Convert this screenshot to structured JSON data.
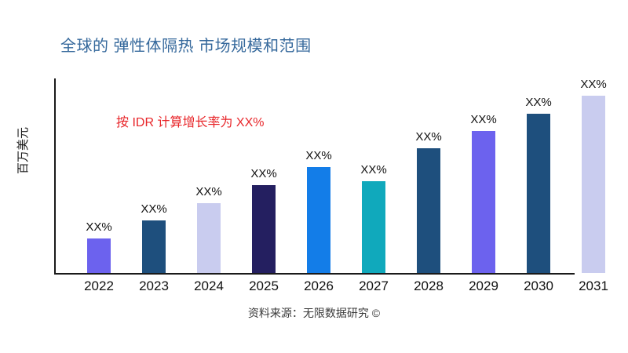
{
  "title": "全球的 弹性体隔热 市场规模和范围",
  "annotation": "按 IDR 计算增长率为 XX%",
  "y_axis_label": "百万美元",
  "source": "资料来源：无限数据研究 ©",
  "colors": {
    "title": "#36699C",
    "annotation": "#E8262A",
    "axis": "#1a1a1a",
    "label_text": "#111111"
  },
  "chart_data": {
    "type": "bar",
    "title": "全球的 弹性体隔热 市场规模和范围",
    "xlabel": "",
    "ylabel": "百万美元",
    "categories": [
      "2022",
      "2023",
      "2024",
      "2025",
      "2026",
      "2027",
      "2028",
      "2029",
      "2030",
      "2031"
    ],
    "values": [
      19.5,
      29.6,
      39.4,
      49.6,
      59.7,
      51.8,
      70.4,
      80.1,
      89.8,
      100
    ],
    "values_note": "relative heights, y-axis has no tick labels; all bars annotated XX%",
    "bar_labels": [
      "XX%",
      "XX%",
      "XX%",
      "XX%",
      "XX%",
      "XX%",
      "XX%",
      "XX%",
      "XX%",
      "XX%"
    ],
    "bar_colors": [
      "#6C62EE",
      "#1E4F7D",
      "#C9CCEF",
      "#241F60",
      "#137DE8",
      "#10A9BC",
      "#1E4F7D",
      "#6C62EE",
      "#1E4F7D",
      "#C9CCEF"
    ],
    "annotation": "按 IDR 计算增长率为 XX%",
    "source": "资料来源：无限数据研究 ©",
    "grid": false,
    "legend": null,
    "ylim": [
      0,
      null
    ]
  }
}
